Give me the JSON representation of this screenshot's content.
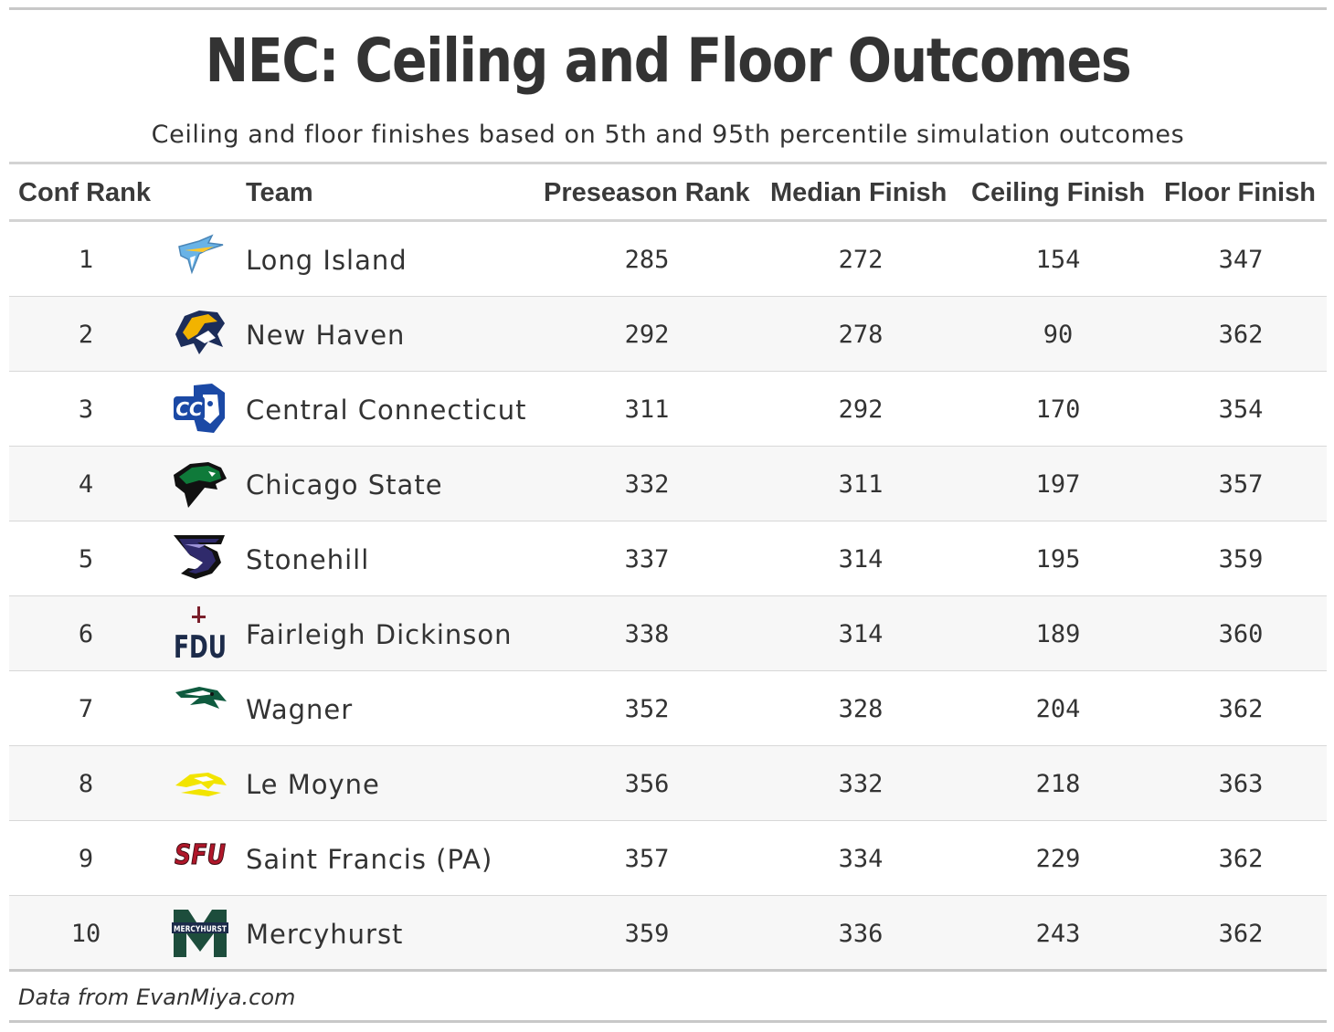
{
  "title": "NEC: Ceiling and Floor Outcomes",
  "subtitle": "Ceiling and floor finishes based on 5th and 95th percentile simulation outcomes",
  "source": "Data from EvanMiya.com",
  "chart_data": {
    "type": "table",
    "columns": [
      "Conf Rank",
      "Team",
      "Preseason Rank",
      "Median Finish",
      "Ceiling Finish",
      "Floor Finish"
    ],
    "rows": [
      {
        "rank": "1",
        "team": "Long Island",
        "logo": "long-island-shark-logo",
        "preseason": "285",
        "median": "272",
        "ceiling": "154",
        "floor": "347"
      },
      {
        "rank": "2",
        "team": "New Haven",
        "logo": "new-haven-charger-logo",
        "preseason": "292",
        "median": "278",
        "ceiling": "90",
        "floor": "362"
      },
      {
        "rank": "3",
        "team": "Central Connecticut",
        "logo": "central-connecticut-blue-devil-logo",
        "preseason": "311",
        "median": "292",
        "ceiling": "170",
        "floor": "354"
      },
      {
        "rank": "4",
        "team": "Chicago State",
        "logo": "chicago-state-cougar-logo",
        "preseason": "332",
        "median": "311",
        "ceiling": "197",
        "floor": "357"
      },
      {
        "rank": "5",
        "team": "Stonehill",
        "logo": "stonehill-s-logo",
        "preseason": "337",
        "median": "314",
        "ceiling": "195",
        "floor": "359"
      },
      {
        "rank": "6",
        "team": "Fairleigh Dickinson",
        "logo": "fdu-logo",
        "preseason": "338",
        "median": "314",
        "ceiling": "189",
        "floor": "360"
      },
      {
        "rank": "7",
        "team": "Wagner",
        "logo": "wagner-seahawk-logo",
        "preseason": "352",
        "median": "328",
        "ceiling": "204",
        "floor": "362"
      },
      {
        "rank": "8",
        "team": "Le Moyne",
        "logo": "le-moyne-dolphin-logo",
        "preseason": "356",
        "median": "332",
        "ceiling": "218",
        "floor": "363"
      },
      {
        "rank": "9",
        "team": "Saint Francis (PA)",
        "logo": "sfu-logo",
        "preseason": "357",
        "median": "334",
        "ceiling": "229",
        "floor": "362"
      },
      {
        "rank": "10",
        "team": "Mercyhurst",
        "logo": "mercyhurst-m-logo",
        "preseason": "359",
        "median": "336",
        "ceiling": "243",
        "floor": "362"
      }
    ]
  },
  "logo_text": {
    "ccsu": "CC",
    "fdu": "FDU",
    "sfu": "SFU",
    "mercyhurst": "MERCYHURST"
  },
  "colors": {
    "text": "#333333",
    "rule": "#c8c8c8",
    "alt_row": "#f7f7f7",
    "liu_blue": "#69b3e7",
    "liu_gold": "#ffc72c",
    "newhaven_navy": "#1c2d5a",
    "newhaven_gold": "#f2b300",
    "ccsu_blue": "#1b49a5",
    "chicago_green": "#0f7a3a",
    "stonehill_purple": "#2f2a6b",
    "fdu_navy": "#1c2b4a",
    "fdu_maroon": "#7a1f2b",
    "wagner_green": "#0f5b3f",
    "lemoyne_yellow": "#f2e400",
    "sfu_red": "#b0172a",
    "mercyhurst_green": "#1d4d3c"
  }
}
